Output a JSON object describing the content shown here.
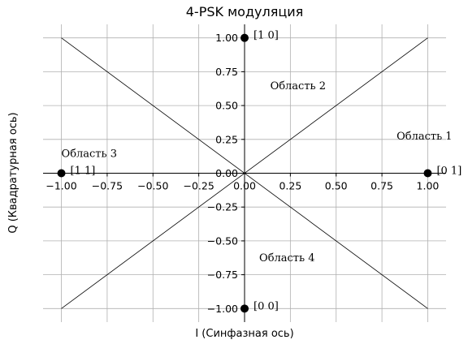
{
  "chart_data": {
    "type": "scatter",
    "title": "4-PSK модуляция",
    "xlabel": "I (Синфазная ось)",
    "ylabel": "Q (Квадратурная ось)",
    "xlim": [
      -1.1,
      1.1
    ],
    "ylim": [
      -1.1,
      1.1
    ],
    "grid": true,
    "x_ticks": [
      -1.0,
      -0.75,
      -0.5,
      -0.25,
      0.0,
      0.25,
      0.5,
      0.75,
      1.0
    ],
    "y_ticks": [
      -1.0,
      -0.75,
      -0.5,
      -0.25,
      0.0,
      0.25,
      0.5,
      0.75,
      1.0
    ],
    "x_tick_labels": [
      "−1.00",
      "−0.75",
      "−0.50",
      "−0.25",
      "0.00",
      "0.25",
      "0.50",
      "0.75",
      "1.00"
    ],
    "y_tick_labels": [
      "−1.00",
      "−0.75",
      "−0.50",
      "−0.25",
      "0.00",
      "0.25",
      "0.50",
      "0.75",
      "1.00"
    ],
    "points": [
      {
        "x": 1,
        "y": 0,
        "label": "[0 1]"
      },
      {
        "x": 0,
        "y": 1,
        "label": "[1 0]"
      },
      {
        "x": -1,
        "y": 0,
        "label": "[1 1]"
      },
      {
        "x": 0,
        "y": -1,
        "label": "[0 0]"
      }
    ],
    "boundary_lines": [
      {
        "x": [
          -1,
          1
        ],
        "y": [
          -1,
          1
        ]
      },
      {
        "x": [
          -1,
          1
        ],
        "y": [
          1,
          -1
        ]
      }
    ],
    "region_labels": [
      {
        "text": "Область 1",
        "x": 0.83,
        "y": 0.25
      },
      {
        "text": "Область 2",
        "x": 0.14,
        "y": 0.62
      },
      {
        "text": "Область 3",
        "x": -1.0,
        "y": 0.12
      },
      {
        "text": "Область 4",
        "x": 0.08,
        "y": -0.65
      }
    ]
  }
}
